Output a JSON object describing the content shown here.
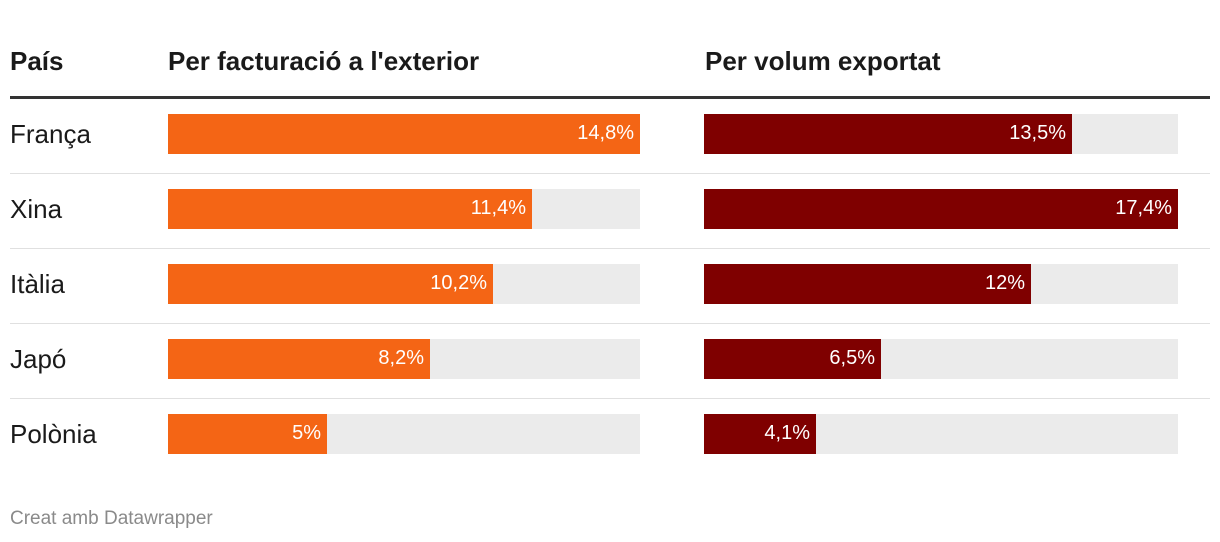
{
  "header": {
    "country": "País",
    "col_a": "Per facturació a l'exterior",
    "col_b": "Per volum exportat"
  },
  "chart_data": {
    "type": "bar",
    "categories": [
      "França",
      "Xina",
      "Itàlia",
      "Japó",
      "Polònia"
    ],
    "series": [
      {
        "name": "Per facturació a l'exterior",
        "values": [
          14.8,
          11.4,
          10.2,
          8.2,
          5
        ],
        "labels": [
          "14,8%",
          "11,4%",
          "10,2%",
          "8,2%",
          "5%"
        ],
        "color": "#f46515",
        "max": 14.8
      },
      {
        "name": "Per volum exportat",
        "values": [
          13.5,
          17.4,
          12,
          6.5,
          4.1
        ],
        "labels": [
          "13,5%",
          "17,4%",
          "12%",
          "6,5%",
          "4,1%"
        ],
        "color": "#7f0000",
        "max": 17.4
      }
    ],
    "track_color": "#ebebeb"
  },
  "footer": {
    "credit": "Creat amb Datawrapper"
  }
}
